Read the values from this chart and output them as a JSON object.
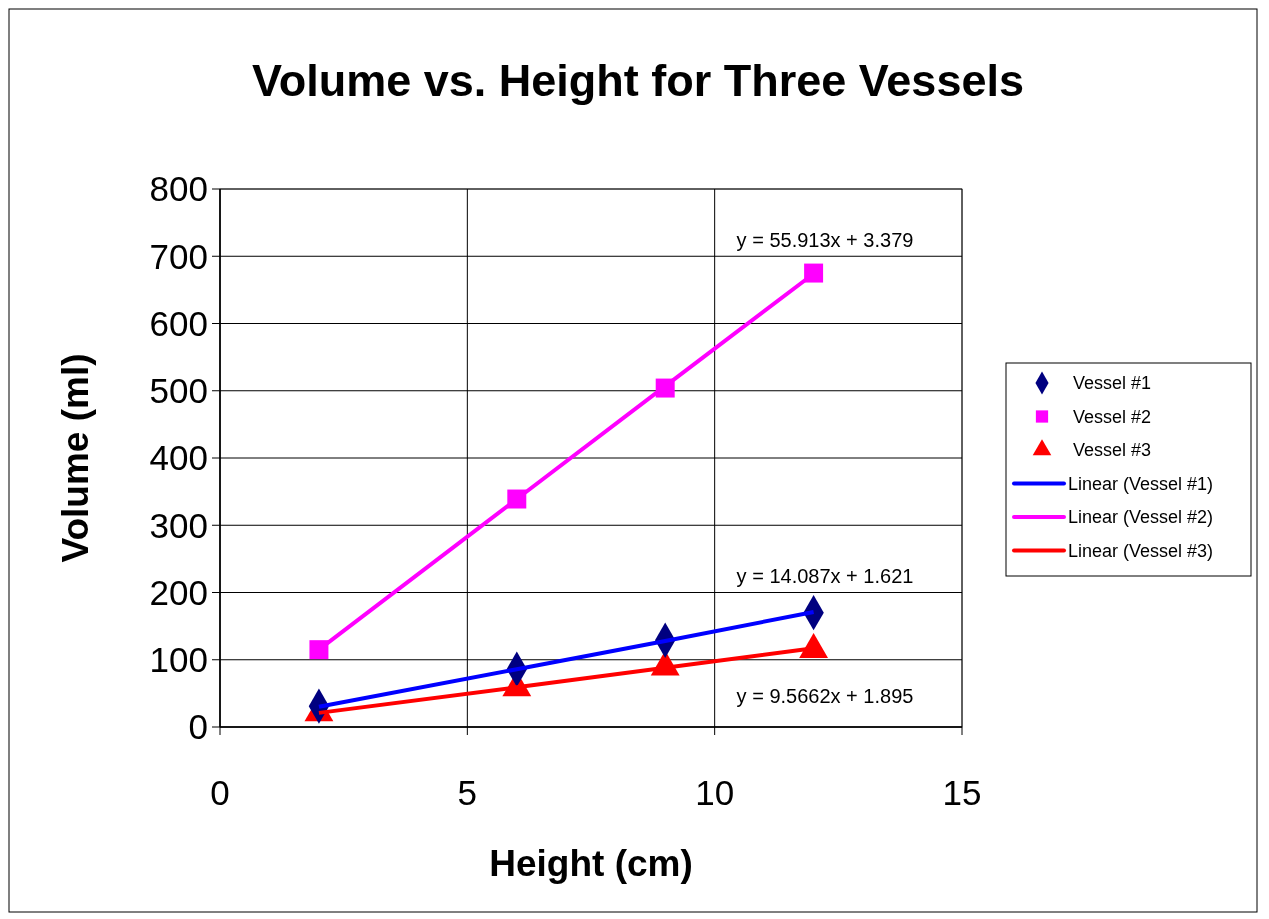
{
  "chart_data": {
    "type": "scatter",
    "title": "Volume vs. Height for Three Vessels",
    "xlabel": "Height (cm)",
    "ylabel": "Volume (ml)",
    "x": [
      2,
      6,
      9,
      12
    ],
    "series": [
      {
        "name": "Vessel #1",
        "type": "scatter",
        "color": "#000080",
        "marker": "diamond",
        "values": [
          31,
          86,
          129,
          170
        ]
      },
      {
        "name": "Vessel #2",
        "type": "scatter",
        "color": "#ff00ff",
        "marker": "square",
        "values": [
          115,
          339,
          504,
          675
        ]
      },
      {
        "name": "Vessel #3",
        "type": "scatter",
        "color": "#ff0000",
        "marker": "triangle",
        "values": [
          21,
          58,
          89,
          115
        ]
      },
      {
        "name": "Linear (Vessel #1)",
        "type": "line",
        "color": "#0000ff",
        "marker": "none",
        "x": [
          2,
          6,
          9,
          12
        ],
        "values": [
          30,
          86,
          128,
          171
        ]
      },
      {
        "name": "Linear (Vessel #2)",
        "type": "line",
        "color": "#ff00ff",
        "marker": "none",
        "x": [
          2,
          6,
          9,
          12
        ],
        "values": [
          115,
          339,
          507,
          674
        ]
      },
      {
        "name": "Linear (Vessel #3)",
        "type": "line",
        "color": "#ff0000",
        "marker": "none",
        "x": [
          2,
          6,
          9,
          12
        ],
        "values": [
          21,
          59,
          88,
          117
        ]
      }
    ],
    "annotations": [
      "y = 55.913x + 3.379",
      "y = 14.087x + 1.621",
      "y = 9.5662x + 1.895"
    ],
    "xlim": [
      0,
      15
    ],
    "xticks": [
      0,
      5,
      10,
      15
    ],
    "ylim": [
      0,
      800
    ],
    "yticks": [
      0,
      100,
      200,
      300,
      400,
      500,
      600,
      700,
      800
    ],
    "grid": true,
    "legend": "right"
  }
}
